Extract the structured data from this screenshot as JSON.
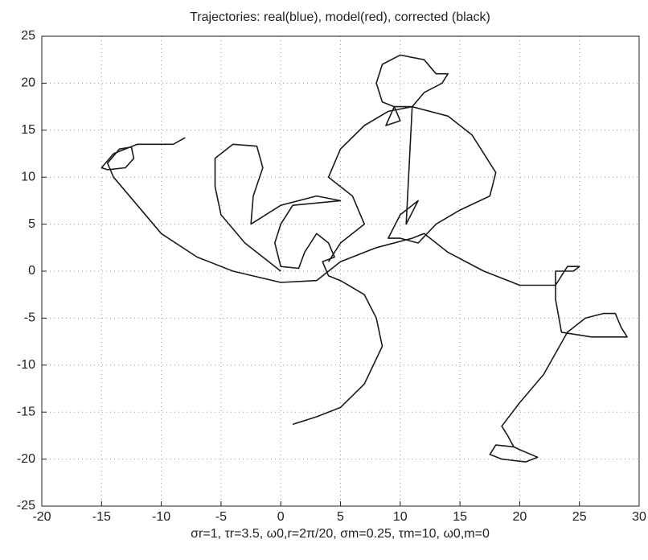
{
  "chart_data": {
    "type": "line",
    "title": "Trajectories: real(blue), model(red), corrected (black)",
    "xlabel": "σr=1, τr=3.5, ω0,r=2π/20, σm=0.25, τm=10, ω0,m=0",
    "xlim": [
      -20,
      30
    ],
    "ylim": [
      -25,
      25
    ],
    "xticks": [
      -20,
      -15,
      -10,
      -5,
      0,
      5,
      10,
      15,
      20,
      25,
      30
    ],
    "yticks": [
      -25,
      -20,
      -15,
      -10,
      -5,
      0,
      5,
      10,
      15,
      20,
      25
    ],
    "grid": true,
    "series": [
      {
        "color": "#1a1a1a",
        "x": [
          -8,
          -9,
          -12,
          -14,
          -15,
          -14.5,
          -13,
          -12.3,
          -12.5,
          -13.5,
          -14.5,
          -14,
          -12,
          -10,
          -7,
          -4,
          0,
          3,
          5,
          8,
          11,
          12,
          14,
          17,
          20,
          23,
          24,
          25,
          24.5,
          23,
          23,
          23.5,
          26,
          29,
          28.5,
          28,
          27,
          25.5,
          24,
          22,
          20,
          18.5,
          19,
          19.5,
          18,
          17.5,
          18.5,
          20.5,
          21.5,
          20,
          19.5
        ],
        "values": [
          14.2,
          13.5,
          13.5,
          12.5,
          11,
          10.8,
          11,
          12,
          13.2,
          13,
          11.5,
          10,
          7,
          4,
          1.5,
          0,
          -1.2,
          -1,
          1,
          2.5,
          3.5,
          4,
          2,
          0,
          -1.5,
          -1.5,
          0.5,
          0.5,
          0,
          0,
          -3,
          -6.5,
          -7,
          -7,
          -6,
          -4.5,
          -4.5,
          -5,
          -6.5,
          -11,
          -14,
          -16.5,
          -17.5,
          -18.7,
          -18.5,
          -19.5,
          -20,
          -20.3,
          -19.8,
          -19,
          -18.7
        ]
      },
      {
        "color": "#1a1a1a",
        "x": [
          0,
          -1,
          -3,
          -5,
          -5.5,
          -5.5,
          -4,
          -2,
          -1.5,
          -2.3,
          -2.5,
          0,
          3,
          5,
          1,
          0,
          -0.5,
          0,
          1.5,
          2,
          3,
          4,
          4.5,
          3.5,
          4,
          5,
          7,
          8,
          8.5,
          7,
          5,
          3,
          1
        ],
        "values": [
          0,
          1,
          3,
          6,
          9,
          12,
          13.5,
          13.3,
          11,
          8,
          5,
          7,
          8,
          7.5,
          7,
          5,
          3,
          0.5,
          0.3,
          2,
          4,
          3,
          1.5,
          1,
          -0.5,
          -1,
          -2.5,
          -5,
          -8,
          -12,
          -14.5,
          -15.5,
          -16.3
        ]
      },
      {
        "color": "#1a1a1a",
        "x": [
          4,
          5,
          6,
          7,
          6,
          4,
          5,
          7,
          9,
          11,
          14,
          16,
          18,
          17.5,
          15,
          13,
          11.5,
          10,
          9,
          10,
          11,
          11.5,
          10.5,
          11,
          9.5,
          8.8,
          10,
          9.5,
          8.5,
          8,
          8.5,
          10,
          12,
          13,
          14,
          13.5,
          12,
          11
        ],
        "values": [
          1,
          3,
          4,
          5,
          8,
          10,
          13,
          15.5,
          17,
          17.5,
          16.5,
          14.5,
          10.5,
          8,
          6.5,
          5,
          3,
          3.5,
          3.5,
          6,
          7,
          7.5,
          5,
          17.5,
          17.5,
          15.5,
          16,
          17.5,
          18,
          20,
          22,
          23,
          22.5,
          21,
          21,
          20,
          19,
          17.5
        ]
      }
    ]
  }
}
